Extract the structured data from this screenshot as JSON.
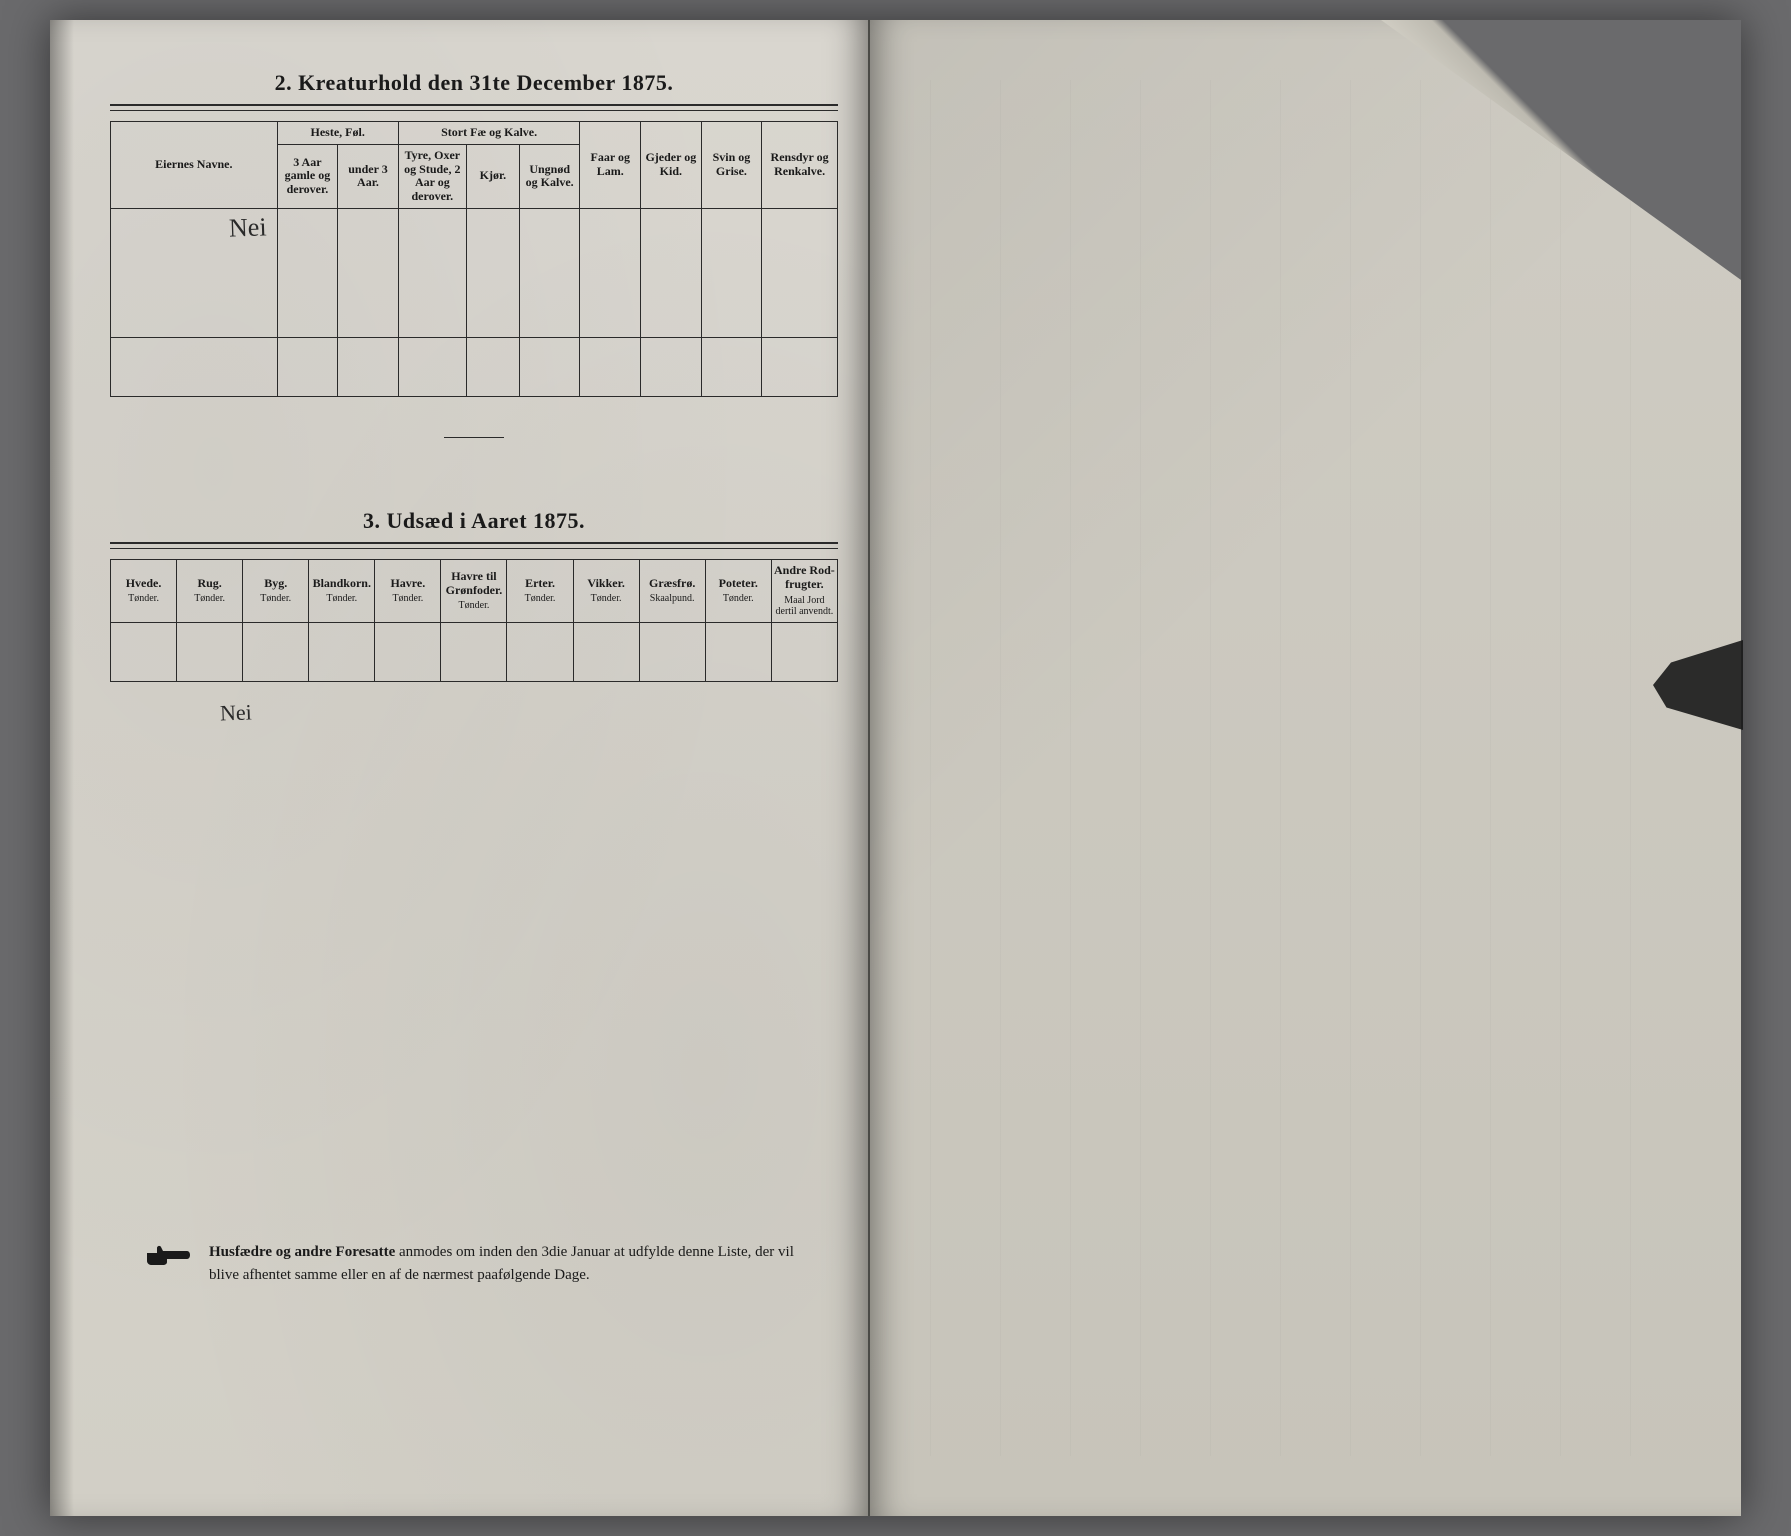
{
  "section2": {
    "title": "2.   Kreaturhold den 31te December 1875.",
    "col_owner": "Eiernes Navne.",
    "group_horses": "Heste, Føl.",
    "group_cattle": "Stort Fæ og Kalve.",
    "col_horses_3plus": "3 Aar gamle og derover.",
    "col_horses_under3": "under 3 Aar.",
    "col_cattle_bulls": "Tyre, Oxer og Stude, 2 Aar og derover.",
    "col_cattle_cows": "Kjør.",
    "col_cattle_young": "Ungnød og Kalve.",
    "col_sheep": "Faar og Lam.",
    "col_goats": "Gjeder og Kid.",
    "col_pigs": "Svin og Grise.",
    "col_reindeer": "Rensdyr og Renkalve.",
    "row_value": "Nei"
  },
  "section3": {
    "title": "3.   Udsæd i Aaret 1875.",
    "cols": [
      {
        "h": "Hvede.",
        "s": "Tønder."
      },
      {
        "h": "Rug.",
        "s": "Tønder."
      },
      {
        "h": "Byg.",
        "s": "Tønder."
      },
      {
        "h": "Blandkorn.",
        "s": "Tønder."
      },
      {
        "h": "Havre.",
        "s": "Tønder."
      },
      {
        "h": "Havre til Grønfoder.",
        "s": "Tønder."
      },
      {
        "h": "Erter.",
        "s": "Tønder."
      },
      {
        "h": "Vikker.",
        "s": "Tønder."
      },
      {
        "h": "Græsfrø.",
        "s": "Skaalpund."
      },
      {
        "h": "Poteter.",
        "s": "Tønder."
      },
      {
        "h": "Andre Rod-frugter.",
        "s": "Maal Jord dertil anvendt."
      }
    ],
    "row_value": "Nei"
  },
  "footer": {
    "text_bold": "Husfædre og andre Foresatte",
    "text_rest": " anmodes om inden den 3die Januar at udfylde denne Liste, der vil blive afhentet samme eller en af de nærmest paafølgende Dage."
  },
  "colors": {
    "page_bg": "#d9d6cf",
    "ink": "#1a1a1a",
    "desk": "#6a6a6c"
  }
}
